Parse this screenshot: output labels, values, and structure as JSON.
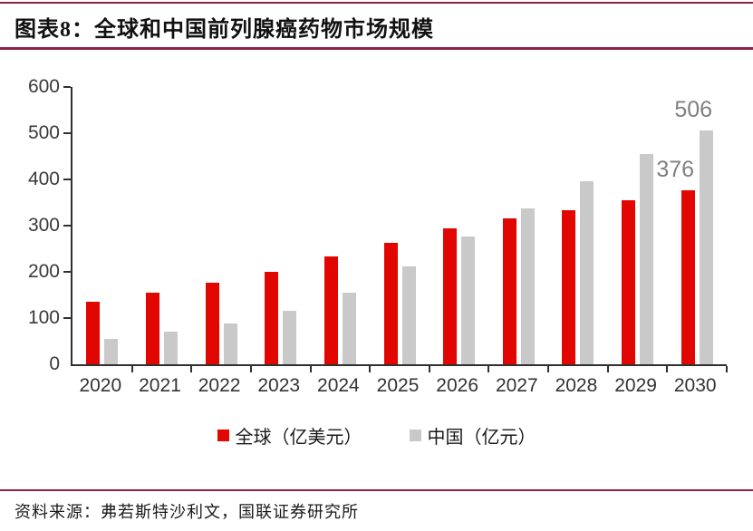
{
  "title": "图表8：全球和中国前列腺癌药物市场规模",
  "source": "资料来源：弗若斯特沙利文，国联证券研究所",
  "colors": {
    "rule_maroon": "#8b2247",
    "axis": "#303030",
    "global_red": "#e10600",
    "china_gray": "#c9c9c9",
    "end_label_gray": "#7f7f7f"
  },
  "chart_data": {
    "type": "bar",
    "title": "全球和中国前列腺癌药物市场规模",
    "categories": [
      "2020",
      "2021",
      "2022",
      "2023",
      "2024",
      "2025",
      "2026",
      "2027",
      "2028",
      "2029",
      "2030"
    ],
    "series": [
      {
        "name": "全球（亿美元）",
        "color": "#e10600",
        "values": [
          136,
          155,
          176,
          201,
          233,
          263,
          294,
          316,
          333,
          355,
          376
        ],
        "end_label": "376"
      },
      {
        "name": "中国（亿元）",
        "color": "#c9c9c9",
        "values": [
          55,
          70,
          88,
          115,
          155,
          212,
          276,
          337,
          397,
          455,
          506
        ],
        "end_label": "506"
      }
    ],
    "xlabel": "",
    "ylabel": "",
    "ylim": [
      0,
      600
    ],
    "yticks": [
      0,
      100,
      200,
      300,
      400,
      500,
      600
    ],
    "grid": false,
    "legend_position": "bottom",
    "annotation_color": "#7f7f7f"
  }
}
